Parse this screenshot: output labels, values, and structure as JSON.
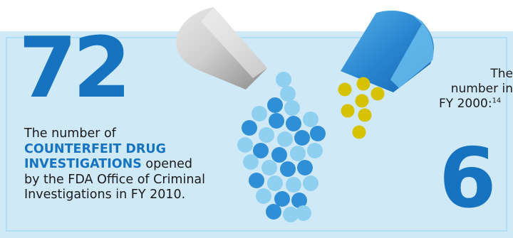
{
  "left_stat": {
    "number": "72",
    "line1": "The number of",
    "highlight_line1": "COUNTERFEIT DRUG",
    "highlight_line2": "INVESTIGATIONS",
    "after_highlight": " opened",
    "line4": "by the FDA Office of Criminal",
    "line5": "Investigations in FY 2010."
  },
  "right_stat": {
    "line1": "The",
    "line2": "number in",
    "line3_prefix": "FY 2000:",
    "footnote": "14",
    "number": "6"
  },
  "colors": {
    "panel": "#cfe9f7",
    "accent_blue": "#1673bf",
    "light_blue": "#8fd0f1",
    "pill_blue": "#2f8fd6",
    "yellow": "#d6c200",
    "gray_pill": "#b9b9b9"
  },
  "icons": {
    "gray_capsule": "capsule-half-gray-icon",
    "blue_capsule": "capsule-half-blue-icon",
    "blue_beads": "pill-beads-blue-icon",
    "yellow_beads": "pill-beads-yellow-icon"
  }
}
